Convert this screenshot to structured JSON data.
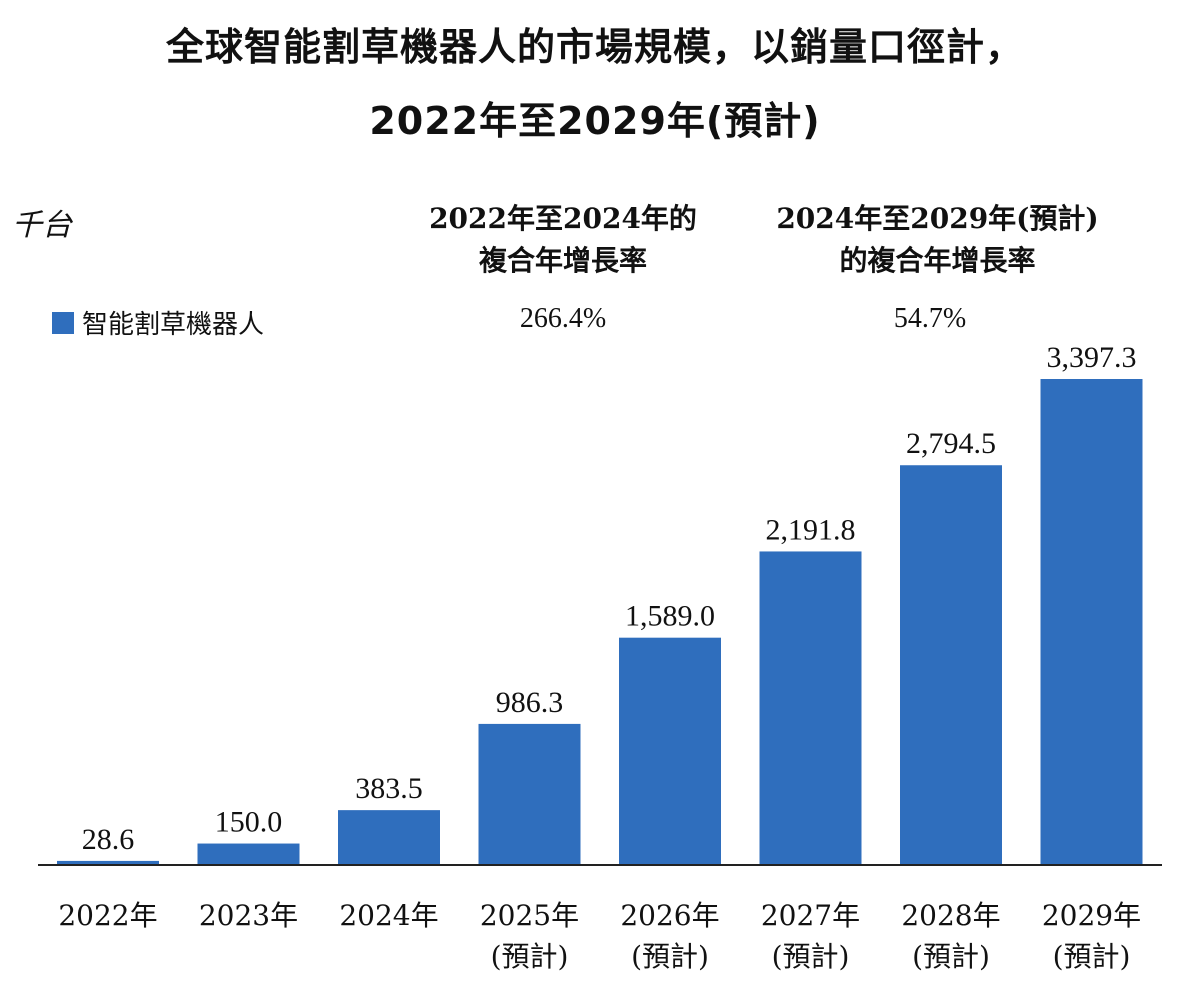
{
  "title_line_1": "全球智能割草機器人的市場規模，以銷量口徑計，",
  "title_line_2": "2022年至2029年(預計)",
  "unit_label": "千台",
  "legend": {
    "label": "智能割草機器人",
    "color": "#2f6ebd"
  },
  "cagr": [
    {
      "header_line_1": "2022年至2024年的",
      "header_line_2": "複合年增長率",
      "value": "266.4%"
    },
    {
      "header_line_1": "2024年至2029年(預計)",
      "header_line_2": "的複合年增長率",
      "value": "54.7%"
    }
  ],
  "chart_data": {
    "type": "bar",
    "title": "全球智能割草機器人的市場規模，以銷量口徑計，2022年至2029年(預計)",
    "ylabel": "千台",
    "categories": [
      [
        "2022年"
      ],
      [
        "2023年"
      ],
      [
        "2024年"
      ],
      [
        "2025年",
        "(預計)"
      ],
      [
        "2026年",
        "(預計)"
      ],
      [
        "2027年",
        "(預計)"
      ],
      [
        "2028年",
        "(預計)"
      ],
      [
        "2029年",
        "(預計)"
      ]
    ],
    "series": [
      {
        "name": "智能割草機器人",
        "values": [
          28.6,
          150.0,
          383.5,
          986.3,
          1589.0,
          2191.8,
          2794.5,
          3397.3
        ],
        "labels": [
          "28.6",
          "150.0",
          "383.5",
          "986.3",
          "1,589.0",
          "2,191.8",
          "2,794.5",
          "3,397.3"
        ]
      }
    ],
    "bar_color": "#2f6ebd",
    "ylim": [
      0,
      3397.3
    ],
    "grid": false,
    "legend_position": "top-left"
  }
}
